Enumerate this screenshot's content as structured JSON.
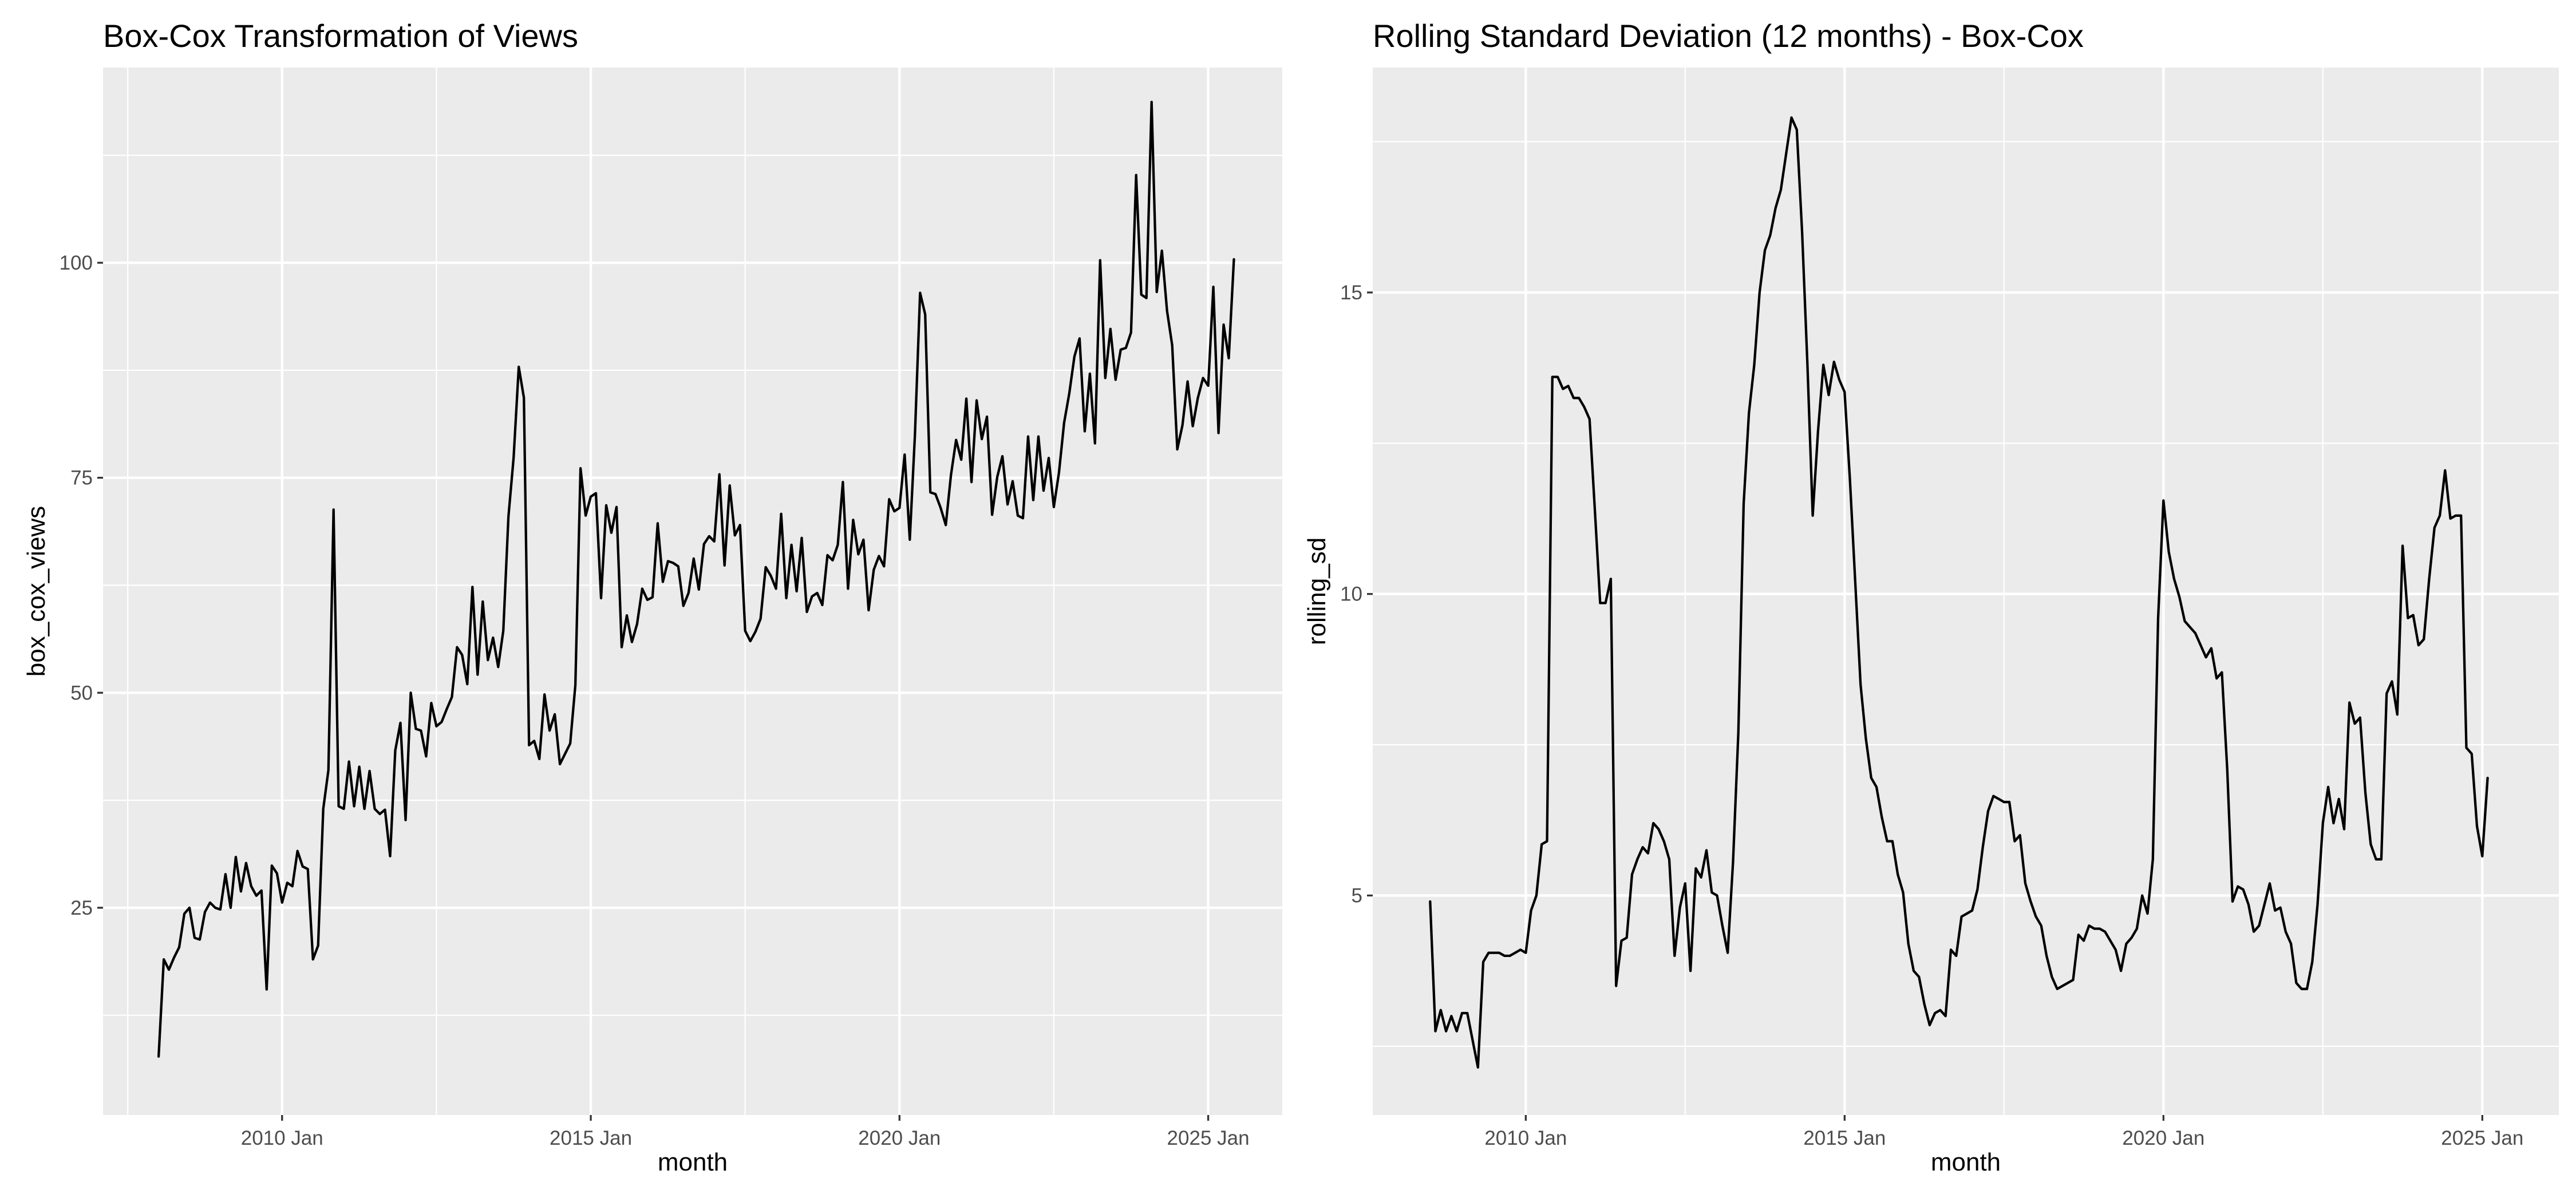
{
  "chart_data": [
    {
      "type": "line",
      "title": "Box-Cox Transformation of Views",
      "xlabel": "month",
      "ylabel": "box_cox_views",
      "x_ticks": [
        "2010 Jan",
        "2015 Jan",
        "2020 Jan",
        "2025 Jan"
      ],
      "y_ticks": [
        "25",
        "50",
        "75",
        "100"
      ],
      "x_tick_values": [
        2010,
        2015,
        2020,
        2025
      ],
      "y_tick_values": [
        25,
        50,
        75,
        100
      ],
      "xlim": [
        2007.1,
        2026.2
      ],
      "ylim": [
        0.9,
        122.7
      ],
      "grid": true,
      "series": [
        {
          "color": "#000000",
          "x_start": 2008.0,
          "x_step": 0.0833333,
          "values": [
            7.7,
            19.0,
            17.8,
            19.2,
            20.4,
            24.3,
            25.0,
            21.5,
            21.3,
            24.5,
            25.6,
            25.0,
            24.8,
            28.9,
            25.0,
            30.9,
            26.9,
            30.2,
            27.5,
            26.4,
            27.0,
            15.5,
            29.9,
            29.0,
            25.6,
            27.9,
            27.5,
            31.6,
            29.8,
            29.5,
            19.0,
            20.6,
            36.5,
            41.0,
            71.3,
            36.8,
            36.5,
            42.0,
            36.8,
            41.4,
            36.5,
            40.9,
            36.5,
            35.9,
            36.4,
            31.0,
            43.3,
            46.5,
            35.2,
            50.0,
            45.8,
            45.6,
            42.6,
            48.8,
            46.1,
            46.6,
            48.1,
            49.5,
            55.3,
            54.4,
            51.0,
            62.3,
            52.1,
            60.6,
            53.8,
            56.4,
            53.0,
            57.2,
            70.5,
            77.3,
            87.9,
            84.3,
            43.9,
            44.4,
            42.3,
            49.8,
            45.6,
            47.5,
            41.7,
            42.9,
            44.1,
            50.9,
            76.1,
            70.6,
            72.8,
            73.2,
            61.0,
            71.8,
            68.6,
            71.6,
            55.3,
            59.0,
            55.9,
            58.0,
            62.1,
            60.8,
            61.1,
            69.7,
            62.9,
            65.3,
            65.1,
            64.7,
            60.1,
            61.6,
            65.6,
            62.0,
            67.3,
            68.2,
            67.6,
            75.4,
            64.8,
            74.1,
            68.3,
            69.5,
            57.2,
            56.0,
            57.1,
            58.6,
            64.6,
            63.6,
            62.1,
            70.8,
            61.0,
            67.2,
            61.8,
            68.0,
            59.4,
            61.2,
            61.6,
            60.2,
            66.0,
            65.4,
            67.2,
            74.5,
            62.1,
            70.1,
            66.1,
            67.8,
            59.6,
            64.3,
            65.9,
            64.7,
            72.5,
            71.1,
            71.5,
            77.7,
            67.8,
            80.0,
            96.5,
            94.0,
            73.3,
            73.1,
            71.5,
            69.5,
            75.3,
            79.4,
            77.1,
            84.2,
            74.5,
            84.0,
            79.5,
            82.1,
            70.7,
            75.1,
            77.5,
            71.9,
            74.6,
            70.6,
            70.3,
            79.8,
            72.4,
            79.8,
            73.5,
            77.3,
            71.6,
            75.6,
            81.4,
            84.8,
            89.1,
            91.2,
            80.4,
            87.1,
            79.0,
            100.3,
            86.6,
            92.3,
            86.4,
            89.9,
            90.1,
            91.9,
            110.2,
            96.3,
            95.9,
            118.7,
            96.6,
            101.4,
            94.4,
            90.4,
            78.3,
            81.1,
            86.2,
            81.0,
            84.3,
            86.6,
            85.7,
            97.2,
            80.2,
            92.8,
            88.9,
            100.4
          ]
        }
      ]
    },
    {
      "type": "line",
      "title": "Rolling Standard Deviation (12 months) - Box-Cox",
      "xlabel": "month",
      "ylabel": "rolling_sd",
      "x_ticks": [
        "2010 Jan",
        "2015 Jan",
        "2020 Jan",
        "2025 Jan"
      ],
      "y_ticks": [
        "5",
        "10",
        "15"
      ],
      "x_tick_values": [
        2010,
        2015,
        2020,
        2025
      ],
      "y_tick_values": [
        5,
        10,
        15
      ],
      "xlim": [
        2007.6,
        2026.2
      ],
      "ylim": [
        1.36,
        18.73
      ],
      "grid": true,
      "series": [
        {
          "color": "#000000",
          "x_start": 2008.5,
          "x_step": 0.0833333,
          "values": [
            4.9,
            2.75,
            3.1,
            2.75,
            3.0,
            2.75,
            3.05,
            3.05,
            2.6,
            2.15,
            3.9,
            4.05,
            4.05,
            4.05,
            4.0,
            4.0,
            4.05,
            4.1,
            4.05,
            4.75,
            5.0,
            5.85,
            5.9,
            13.6,
            13.6,
            13.4,
            13.45,
            13.25,
            13.25,
            13.1,
            12.9,
            11.4,
            9.85,
            9.85,
            10.25,
            3.5,
            4.25,
            4.3,
            5.35,
            5.6,
            5.8,
            5.7,
            6.2,
            6.1,
            5.9,
            5.6,
            4.0,
            4.8,
            5.2,
            3.75,
            5.45,
            5.3,
            5.75,
            5.05,
            5.0,
            4.5,
            4.05,
            5.55,
            7.7,
            11.5,
            13.0,
            13.8,
            15.0,
            15.7,
            15.95,
            16.4,
            16.7,
            17.3,
            17.9,
            17.7,
            16.0,
            13.8,
            11.3,
            12.7,
            13.8,
            13.3,
            13.85,
            13.55,
            13.35,
            11.9,
            10.2,
            8.5,
            7.6,
            6.95,
            6.8,
            6.3,
            5.9,
            5.9,
            5.35,
            5.05,
            4.2,
            3.75,
            3.65,
            3.2,
            2.85,
            3.05,
            3.1,
            3.0,
            4.1,
            4.0,
            4.65,
            4.7,
            4.75,
            5.1,
            5.8,
            6.4,
            6.65,
            6.6,
            6.55,
            6.55,
            5.9,
            6.0,
            5.2,
            4.9,
            4.65,
            4.5,
            4.0,
            3.65,
            3.45,
            3.5,
            3.55,
            3.6,
            4.35,
            4.25,
            4.5,
            4.45,
            4.45,
            4.4,
            4.25,
            4.1,
            3.75,
            4.2,
            4.3,
            4.45,
            5.0,
            4.7,
            5.6,
            9.6,
            11.55,
            10.7,
            10.25,
            9.95,
            9.55,
            9.45,
            9.35,
            9.15,
            8.95,
            9.1,
            8.6,
            8.7,
            7.1,
            4.9,
            5.15,
            5.1,
            4.85,
            4.4,
            4.5,
            4.85,
            5.2,
            4.75,
            4.8,
            4.4,
            4.2,
            3.55,
            3.45,
            3.45,
            3.9,
            4.85,
            6.2,
            6.8,
            6.2,
            6.6,
            6.1,
            8.2,
            7.85,
            7.95,
            6.7,
            5.85,
            5.6,
            5.6,
            8.35,
            8.55,
            8.0,
            10.8,
            9.6,
            9.65,
            9.15,
            9.25,
            10.25,
            11.1,
            11.3,
            12.05,
            11.25,
            11.3,
            11.3,
            7.45,
            7.35,
            6.15,
            5.65,
            6.95
          ]
        }
      ]
    }
  ]
}
